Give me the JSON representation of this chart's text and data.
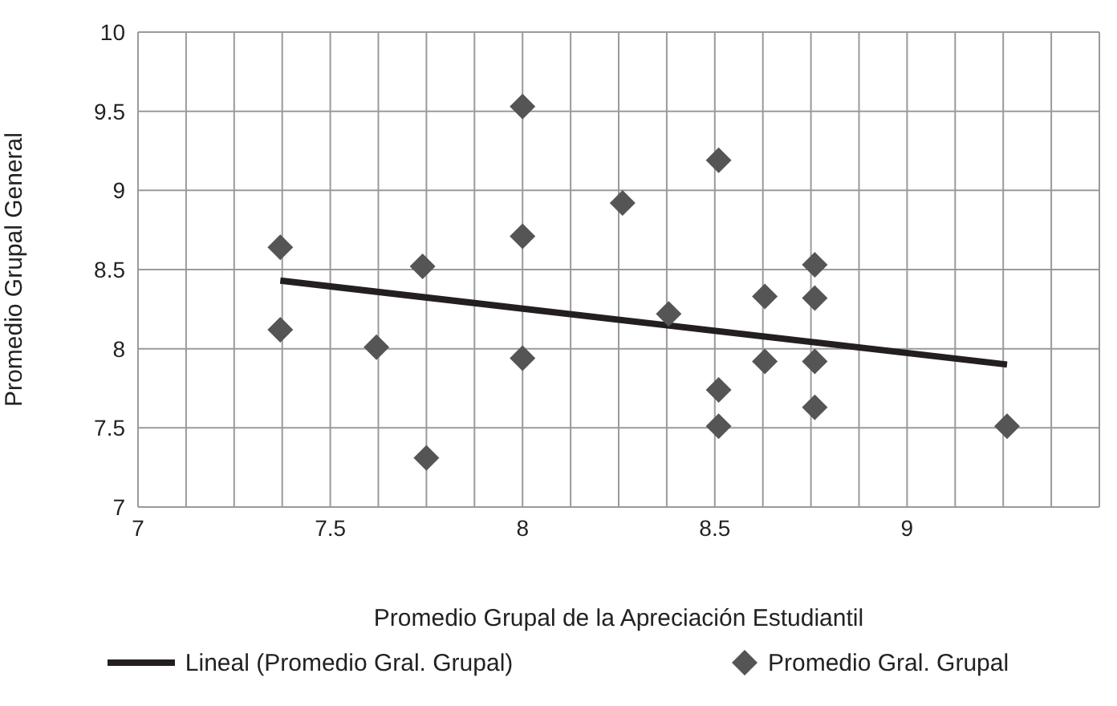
{
  "chart_data": {
    "type": "scatter",
    "xlabel": "Promedio Grupal de la Apreciación Estudiantil",
    "ylabel": "Promedio Grupal General",
    "xlim": [
      7,
      9.5
    ],
    "xticks": [
      7,
      {
        "value": 7.125,
        "label": null
      },
      {
        "value": 7.25,
        "label": null
      },
      {
        "value": 7.375,
        "label": null
      },
      7.5,
      {
        "value": 7.625,
        "label": null
      },
      {
        "value": 7.75,
        "label": null
      },
      {
        "value": 7.875,
        "label": null
      },
      8,
      {
        "value": 8.125,
        "label": null
      },
      {
        "value": 8.25,
        "label": null
      },
      {
        "value": 8.375,
        "label": null
      },
      8.5,
      {
        "value": 8.625,
        "label": null
      },
      {
        "value": 8.75,
        "label": null
      },
      {
        "value": 8.875,
        "label": null
      },
      9,
      {
        "value": 9.125,
        "label": null
      },
      {
        "value": 9.25,
        "label": null
      },
      {
        "value": 9.375,
        "label": null
      },
      {
        "value": 9.5,
        "label": null
      }
    ],
    "ylim": [
      7,
      10
    ],
    "yticks": [
      7,
      7.5,
      8,
      8.5,
      9,
      9.5,
      10
    ],
    "grid": true,
    "legend": "bottom",
    "series": [
      {
        "name": "Lineal (Promedio Gral. Grupal)",
        "type": "line",
        "color": "#231f20",
        "line_style": "solid",
        "marker": "none",
        "x": [
          7.37,
          9.26
        ],
        "values": [
          8.43,
          7.9
        ]
      },
      {
        "name": "Promedio Gral. Grupal",
        "type": "scatter",
        "color": "#555555",
        "marker": "diamond",
        "x": [
          7.37,
          7.37,
          7.62,
          7.74,
          7.75,
          8.0,
          8.0,
          8.0,
          8.26,
          8.38,
          8.51,
          8.51,
          8.51,
          8.63,
          8.63,
          8.76,
          8.76,
          8.76,
          8.76,
          9.26
        ],
        "values": [
          8.64,
          8.12,
          8.01,
          8.52,
          7.31,
          9.53,
          8.71,
          7.94,
          8.92,
          8.22,
          9.19,
          7.74,
          7.51,
          8.33,
          7.92,
          8.53,
          8.32,
          7.92,
          7.63,
          7.51
        ]
      }
    ]
  }
}
